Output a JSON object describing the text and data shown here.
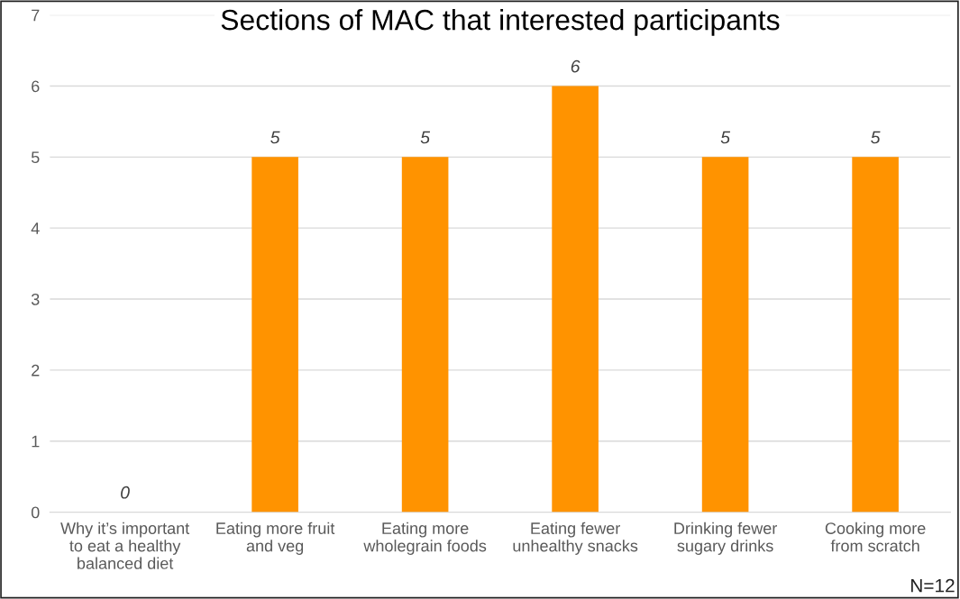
{
  "chart_data": {
    "type": "bar",
    "title": "Sections of MAC that interested participants",
    "categories": [
      "Why it’s important\nto eat a healthy\nbalanced diet",
      "Eating more fruit\nand veg",
      "Eating more\nwholegrain foods",
      "Eating fewer\nunhealthy snacks",
      "Drinking fewer\nsugary drinks",
      "Cooking more\nfrom scratch"
    ],
    "values": [
      0,
      5,
      5,
      6,
      5,
      5
    ],
    "color": "#ff9300",
    "ylim": [
      0,
      7
    ],
    "yticks": [
      0,
      1,
      2,
      3,
      4,
      5,
      6,
      7
    ],
    "grid": "y",
    "data_labels": true,
    "annotations": [
      "N=12"
    ]
  }
}
